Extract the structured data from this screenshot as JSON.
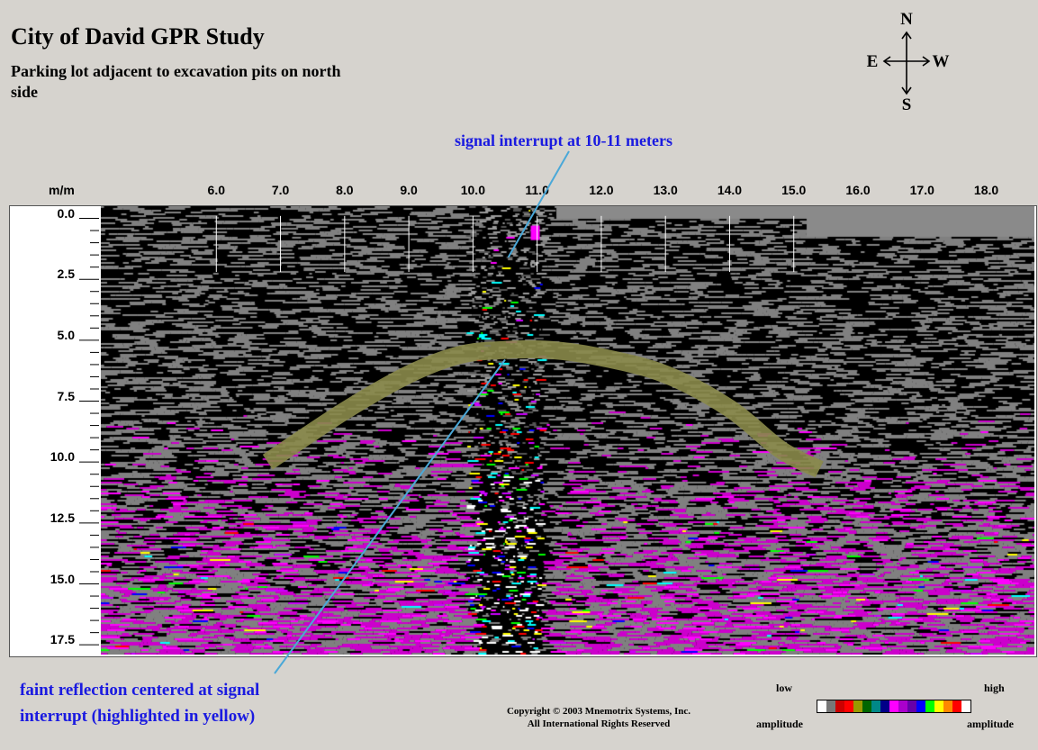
{
  "title": "City of David GPR Study",
  "subtitle": "Parking lot adjacent to excavation pits on north side",
  "compass": {
    "n": "N",
    "s": "S",
    "e": "E",
    "w": "W"
  },
  "annotations": {
    "top": "signal interrupt at 10-11 meters",
    "bottom_line1": "faint reflection centered at signal",
    "bottom_line2": "interrupt (highlighted in yellow)"
  },
  "copyright": {
    "line1": "Copyright © 2003 Mnemotrix Systems, Inc.",
    "line2": "All International Rights Reserved"
  },
  "legend": {
    "low": "low",
    "high": "high",
    "amplitude_left": "amplitude",
    "amplitude_right": "amplitude",
    "colors": [
      "#ffffff",
      "#777777",
      "#cc0000",
      "#ff0000",
      "#999900",
      "#006600",
      "#008888",
      "#000088",
      "#ff00ff",
      "#aa00cc",
      "#6600aa",
      "#0000ff",
      "#00ff00",
      "#ffff00",
      "#ff8800",
      "#ff0000",
      "#ffffff"
    ]
  },
  "chart_data": {
    "type": "heatmap",
    "title": "City of David GPR Study",
    "xlabel": "",
    "ylabel": "",
    "axis_unit": "m/m",
    "x_ticks": [
      "6.0",
      "7.0",
      "8.0",
      "9.0",
      "10.0",
      "11.0",
      "12.0",
      "13.0",
      "14.0",
      "15.0",
      "16.0",
      "17.0",
      "18.0"
    ],
    "y_ticks": [
      "0.0",
      "2.5",
      "5.0",
      "7.5",
      "10.0",
      "12.5",
      "15.0",
      "17.5"
    ],
    "xlim": [
      4.2,
      18.75
    ],
    "ylim": [
      -0.5,
      17.9
    ],
    "y_reversed": true,
    "signal_interrupt_x": [
      10.0,
      11.0
    ],
    "reflection_curve": {
      "x": [
        6.8,
        8.0,
        9.0,
        9.8,
        10.5,
        11.2,
        12.0,
        13.0,
        14.0,
        14.8,
        15.4
      ],
      "y": [
        10.0,
        7.9,
        6.4,
        5.6,
        5.4,
        5.4,
        5.7,
        6.4,
        7.8,
        9.5,
        10.3
      ]
    },
    "colors": {
      "band": "#8a8a4a",
      "annotation": "#1a1ae0",
      "pointer": "#4aa8d8"
    }
  }
}
